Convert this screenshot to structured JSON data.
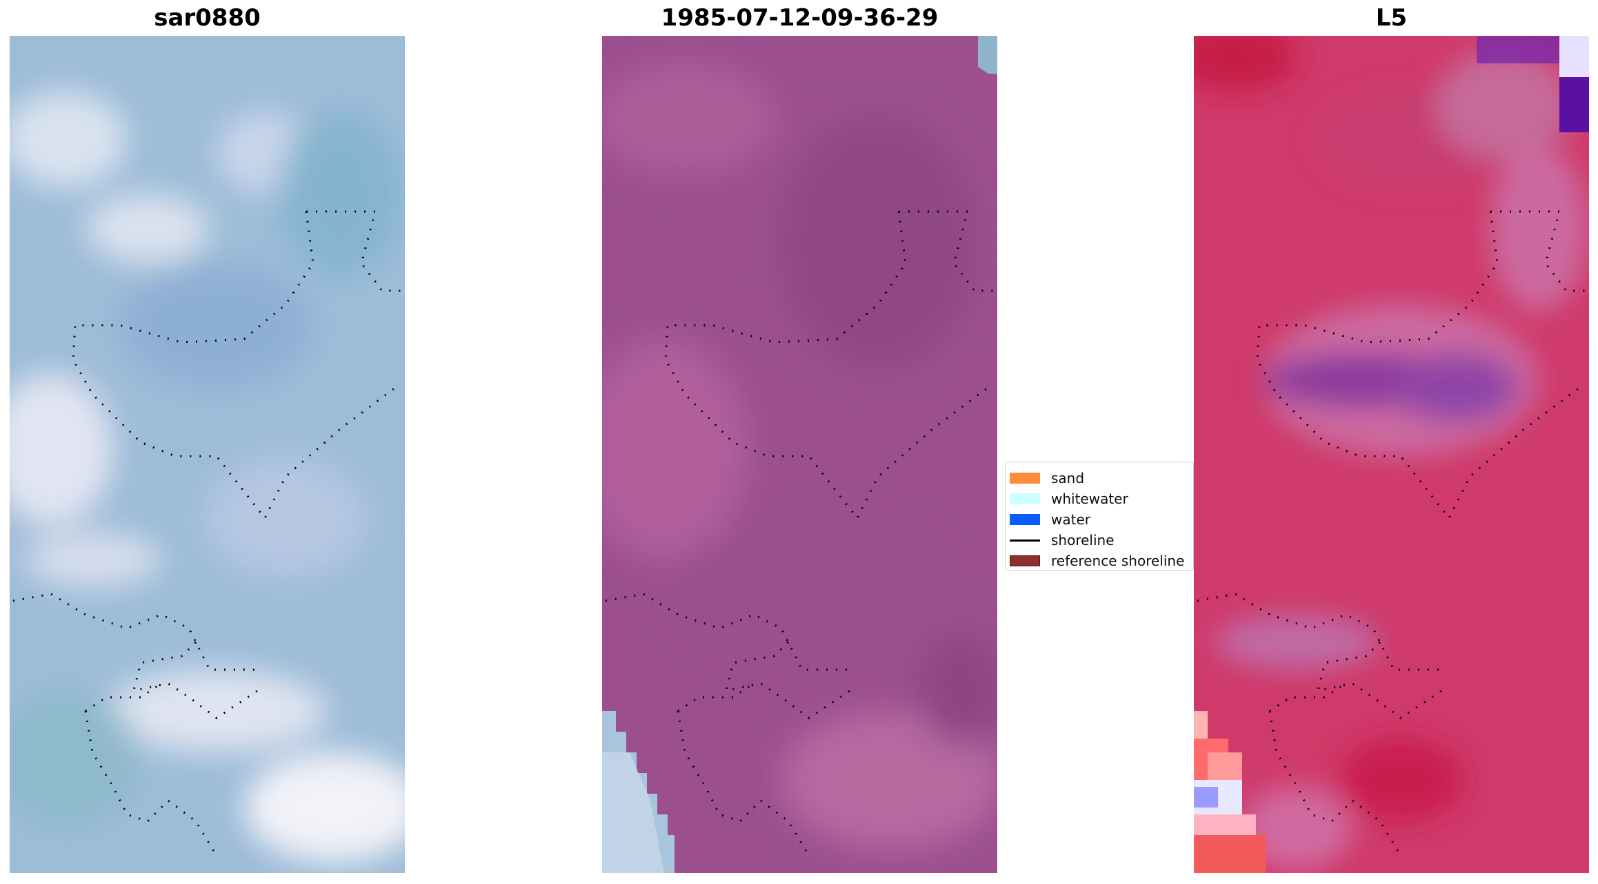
{
  "panels": [
    {
      "title": "sar0880",
      "icon": "sar-image"
    },
    {
      "title": "1985-07-12-09-36-29",
      "icon": "satellite-rgb-image"
    },
    {
      "title": "L5",
      "icon": "classification-image"
    }
  ],
  "legend": {
    "items": [
      {
        "label": "sand",
        "color": "#ff8c3a",
        "kind": "patch"
      },
      {
        "label": "whitewater",
        "color": "#ccffff",
        "kind": "patch"
      },
      {
        "label": "water",
        "color": "#0a5cff",
        "kind": "patch"
      },
      {
        "label": "shoreline",
        "color": "#000000",
        "kind": "line"
      },
      {
        "label": "reference shoreline",
        "color": "#8b2f2f",
        "kind": "patch"
      }
    ]
  },
  "colors": {
    "panel1_base": "#9dbcd8",
    "panel2_base": "#9b4f8f",
    "panel3_base": "#cf3a6a",
    "shoreline_dots": "#000000"
  }
}
